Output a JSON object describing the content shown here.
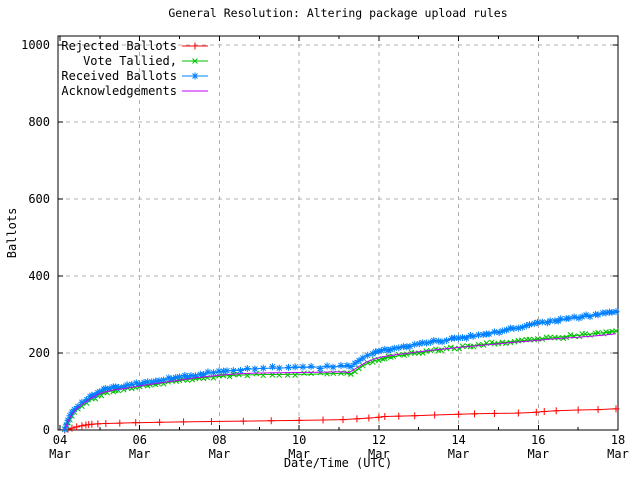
{
  "window": {
    "background": "#ffffff"
  },
  "chart_data": {
    "type": "line",
    "title": "General Resolution: Altering package upload rules",
    "xlabel": "Date/Time (UTC)",
    "ylabel": "Ballots",
    "x_unit": "day of March (UTC)",
    "xlim": [
      3.95,
      18.0
    ],
    "ylim": [
      0,
      1023
    ],
    "grid": {
      "shown": true,
      "color": "#b0b0b0",
      "style": "dashed"
    },
    "legend_position": "top-left",
    "month_label": "Mar",
    "x_ticks": [
      {
        "day": 4,
        "label": "04",
        "month": "Mar",
        "gridline": false
      },
      {
        "day": 6,
        "label": "06",
        "month": "Mar",
        "gridline": true
      },
      {
        "day": 8,
        "label": "08",
        "month": "Mar",
        "gridline": true
      },
      {
        "day": 10,
        "label": "10",
        "month": "Mar",
        "gridline": true
      },
      {
        "day": 12,
        "label": "12",
        "month": "Mar",
        "gridline": true
      },
      {
        "day": 14,
        "label": "14",
        "month": "Mar",
        "gridline": true
      },
      {
        "day": 16,
        "label": "16",
        "month": "Mar",
        "gridline": true
      },
      {
        "day": 18,
        "label": "18",
        "month": "Mar",
        "gridline": false
      }
    ],
    "x_minor_tick_days": [
      5,
      7,
      9,
      11,
      13,
      15,
      17
    ],
    "y_ticks": [
      {
        "value": 0,
        "label": "0"
      },
      {
        "value": 200,
        "label": "200"
      },
      {
        "value": 400,
        "label": "400"
      },
      {
        "value": 600,
        "label": "600"
      },
      {
        "value": 800,
        "label": "800"
      },
      {
        "value": 1000,
        "label": "1000"
      }
    ],
    "series": [
      {
        "name": "Rejected Ballots",
        "color": "#ff0000",
        "marker": "plus",
        "points": [
          [
            4.12,
            0
          ],
          [
            4.2,
            2
          ],
          [
            4.3,
            5
          ],
          [
            4.42,
            8
          ],
          [
            4.55,
            11
          ],
          [
            4.65,
            13
          ],
          [
            4.72,
            14
          ],
          [
            4.8,
            15
          ],
          [
            4.95,
            16
          ],
          [
            5.15,
            17
          ],
          [
            5.5,
            18
          ],
          [
            5.9,
            19
          ],
          [
            6.5,
            20
          ],
          [
            7.1,
            21
          ],
          [
            7.8,
            22
          ],
          [
            8.6,
            23
          ],
          [
            9.3,
            24
          ],
          [
            10.0,
            25
          ],
          [
            10.6,
            26
          ],
          [
            11.1,
            27
          ],
          [
            11.45,
            29
          ],
          [
            11.75,
            31
          ],
          [
            12.0,
            33
          ],
          [
            12.15,
            35
          ],
          [
            12.5,
            36
          ],
          [
            12.9,
            37
          ],
          [
            13.4,
            39
          ],
          [
            14.0,
            41
          ],
          [
            14.4,
            42
          ],
          [
            14.9,
            43
          ],
          [
            15.5,
            44
          ],
          [
            15.95,
            46
          ],
          [
            16.15,
            48
          ],
          [
            16.45,
            50
          ],
          [
            17.0,
            52
          ],
          [
            17.5,
            53
          ],
          [
            17.95,
            55
          ]
        ]
      },
      {
        "name": "Vote Tallied,",
        "color": "#00c000",
        "marker": "cross",
        "points": [
          [
            4.12,
            0
          ],
          [
            4.16,
            8
          ],
          [
            4.2,
            18
          ],
          [
            4.25,
            28
          ],
          [
            4.3,
            38
          ],
          [
            4.36,
            46
          ],
          [
            4.45,
            55
          ],
          [
            4.55,
            63
          ],
          [
            4.67,
            71
          ],
          [
            4.8,
            80
          ],
          [
            4.95,
            89
          ],
          [
            5.1,
            96
          ],
          [
            5.25,
            101
          ],
          [
            5.4,
            104
          ],
          [
            5.6,
            107
          ],
          [
            5.8,
            110
          ],
          [
            6.0,
            113
          ],
          [
            6.2,
            116
          ],
          [
            6.4,
            119
          ],
          [
            6.6,
            122
          ],
          [
            6.8,
            125
          ],
          [
            7.0,
            128
          ],
          [
            7.2,
            131
          ],
          [
            7.4,
            133
          ],
          [
            7.6,
            136
          ],
          [
            7.85,
            138
          ],
          [
            8.1,
            140
          ],
          [
            8.35,
            142
          ],
          [
            8.7,
            143
          ],
          [
            9.1,
            144
          ],
          [
            9.5,
            144
          ],
          [
            9.9,
            145
          ],
          [
            10.3,
            145
          ],
          [
            10.7,
            146
          ],
          [
            11.05,
            147
          ],
          [
            11.2,
            148
          ],
          [
            11.3,
            145
          ],
          [
            11.4,
            153
          ],
          [
            11.5,
            160
          ],
          [
            11.6,
            167
          ],
          [
            11.72,
            173
          ],
          [
            11.85,
            178
          ],
          [
            12.0,
            183
          ],
          [
            12.15,
            186
          ],
          [
            12.3,
            189
          ],
          [
            12.5,
            193
          ],
          [
            12.7,
            196
          ],
          [
            12.9,
            199
          ],
          [
            13.1,
            202
          ],
          [
            13.3,
            205
          ],
          [
            13.5,
            208
          ],
          [
            13.7,
            211
          ],
          [
            13.9,
            213
          ],
          [
            14.1,
            216
          ],
          [
            14.3,
            218
          ],
          [
            14.5,
            221
          ],
          [
            14.7,
            223
          ],
          [
            14.9,
            225
          ],
          [
            15.1,
            227
          ],
          [
            15.3,
            229
          ],
          [
            15.5,
            231
          ],
          [
            15.7,
            233
          ],
          [
            15.9,
            235
          ],
          [
            16.1,
            237
          ],
          [
            16.3,
            239
          ],
          [
            16.5,
            241
          ],
          [
            16.7,
            243
          ],
          [
            16.9,
            245
          ],
          [
            17.1,
            247
          ],
          [
            17.3,
            249
          ],
          [
            17.5,
            251
          ],
          [
            17.7,
            253
          ],
          [
            17.85,
            255
          ],
          [
            17.95,
            257
          ]
        ]
      },
      {
        "name": "Received Ballots",
        "color": "#0080ff",
        "marker": "star",
        "points": [
          [
            4.12,
            2
          ],
          [
            4.16,
            12
          ],
          [
            4.2,
            24
          ],
          [
            4.25,
            35
          ],
          [
            4.3,
            45
          ],
          [
            4.36,
            54
          ],
          [
            4.45,
            63
          ],
          [
            4.55,
            72
          ],
          [
            4.67,
            80
          ],
          [
            4.8,
            89
          ],
          [
            4.95,
            98
          ],
          [
            5.1,
            104
          ],
          [
            5.25,
            108
          ],
          [
            5.4,
            111
          ],
          [
            5.6,
            114
          ],
          [
            5.8,
            117
          ],
          [
            6.0,
            121
          ],
          [
            6.2,
            124
          ],
          [
            6.4,
            127
          ],
          [
            6.6,
            131
          ],
          [
            6.8,
            134
          ],
          [
            7.0,
            137
          ],
          [
            7.2,
            140
          ],
          [
            7.4,
            143
          ],
          [
            7.6,
            146
          ],
          [
            7.85,
            149
          ],
          [
            8.1,
            152
          ],
          [
            8.35,
            155
          ],
          [
            8.7,
            158
          ],
          [
            9.1,
            160
          ],
          [
            9.5,
            161
          ],
          [
            9.9,
            162
          ],
          [
            10.3,
            163
          ],
          [
            10.7,
            164
          ],
          [
            11.05,
            165
          ],
          [
            11.2,
            166
          ],
          [
            11.3,
            162
          ],
          [
            11.4,
            172
          ],
          [
            11.5,
            181
          ],
          [
            11.6,
            189
          ],
          [
            11.72,
            195
          ],
          [
            11.85,
            200
          ],
          [
            12.0,
            205
          ],
          [
            12.15,
            208
          ],
          [
            12.3,
            211
          ],
          [
            12.5,
            215
          ],
          [
            12.7,
            218
          ],
          [
            12.9,
            222
          ],
          [
            13.1,
            225
          ],
          [
            13.3,
            228
          ],
          [
            13.5,
            231
          ],
          [
            13.7,
            234
          ],
          [
            13.9,
            237
          ],
          [
            14.1,
            241
          ],
          [
            14.3,
            244
          ],
          [
            14.5,
            247
          ],
          [
            14.7,
            250
          ],
          [
            14.9,
            254
          ],
          [
            15.1,
            258
          ],
          [
            15.3,
            262
          ],
          [
            15.5,
            266
          ],
          [
            15.7,
            270
          ],
          [
            15.9,
            274
          ],
          [
            16.1,
            278
          ],
          [
            16.3,
            282
          ],
          [
            16.5,
            285
          ],
          [
            16.7,
            288
          ],
          [
            16.9,
            291
          ],
          [
            17.1,
            294
          ],
          [
            17.3,
            297
          ],
          [
            17.5,
            300
          ],
          [
            17.7,
            303
          ],
          [
            17.85,
            305
          ],
          [
            17.95,
            307
          ]
        ]
      },
      {
        "name": "Acknowledgements",
        "color": "#c000ff",
        "marker": "none",
        "points": [
          [
            4.12,
            0
          ],
          [
            4.2,
            22
          ],
          [
            4.3,
            42
          ],
          [
            4.45,
            58
          ],
          [
            4.6,
            70
          ],
          [
            4.8,
            84
          ],
          [
            5.0,
            95
          ],
          [
            5.3,
            103
          ],
          [
            5.7,
            109
          ],
          [
            6.1,
            116
          ],
          [
            6.5,
            122
          ],
          [
            6.9,
            128
          ],
          [
            7.3,
            134
          ],
          [
            7.7,
            139
          ],
          [
            8.1,
            143
          ],
          [
            8.5,
            146
          ],
          [
            9.0,
            148
          ],
          [
            9.7,
            149
          ],
          [
            10.5,
            150
          ],
          [
            11.1,
            151
          ],
          [
            11.25,
            149
          ],
          [
            11.4,
            158
          ],
          [
            11.55,
            168
          ],
          [
            11.7,
            177
          ],
          [
            11.9,
            185
          ],
          [
            12.1,
            190
          ],
          [
            12.4,
            195
          ],
          [
            12.7,
            199
          ],
          [
            13.0,
            203
          ],
          [
            13.4,
            208
          ],
          [
            13.8,
            212
          ],
          [
            14.2,
            216
          ],
          [
            14.6,
            220
          ],
          [
            15.0,
            224
          ],
          [
            15.4,
            228
          ],
          [
            15.8,
            231
          ],
          [
            16.2,
            235
          ],
          [
            16.6,
            238
          ],
          [
            17.0,
            241
          ],
          [
            17.4,
            244
          ],
          [
            17.7,
            247
          ],
          [
            17.95,
            250
          ]
        ]
      }
    ]
  }
}
